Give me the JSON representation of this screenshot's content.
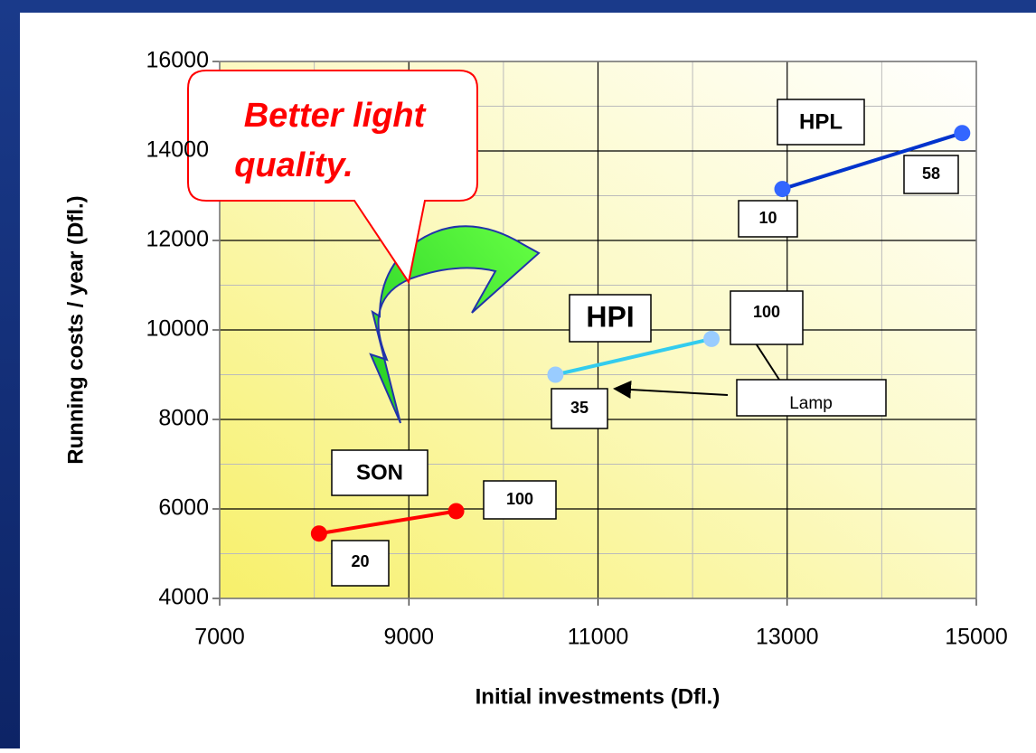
{
  "chart_data": {
    "type": "scatter",
    "x_label": "Initial investments (Dfl.)",
    "y_label": "Running costs / year (Dfl.)",
    "xlim": [
      7000,
      15000
    ],
    "xticks": [
      7000,
      9000,
      11000,
      13000,
      15000
    ],
    "ylim": [
      4000,
      16000
    ],
    "yticks": [
      4000,
      6000,
      8000,
      10000,
      12000,
      14000,
      16000
    ],
    "x_minor_grid": [
      8000,
      10000,
      12000,
      14000
    ],
    "y_minor_grid": [
      5000,
      7000,
      9000,
      11000,
      13000,
      15000
    ],
    "grid": true,
    "series": [
      {
        "name": "SON",
        "color": "#ff0000",
        "x": [
          8050,
          9500
        ],
        "y": [
          5450,
          5950
        ],
        "point_labels": [
          "20",
          "100"
        ]
      },
      {
        "name": "HPI",
        "color": "#33ccee",
        "marker_color": "#99ccff",
        "x": [
          10550,
          12200
        ],
        "y": [
          9000,
          9800
        ],
        "point_labels": [
          "35",
          "100"
        ]
      },
      {
        "name": "HPL",
        "color": "#0033cc",
        "marker_color": "#3366ff",
        "x": [
          12950,
          14850
        ],
        "y": [
          13150,
          14400
        ],
        "point_labels": [
          "10",
          "58"
        ]
      }
    ],
    "callout": [
      "Better light",
      "quality."
    ],
    "lamp_label": "Lamp"
  }
}
